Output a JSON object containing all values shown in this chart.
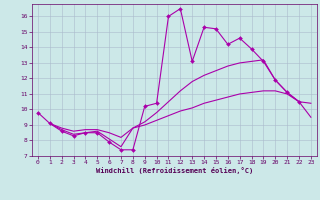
{
  "xlabel": "Windchill (Refroidissement éolien,°C)",
  "xlim": [
    -0.5,
    23.5
  ],
  "ylim": [
    7,
    16.8
  ],
  "yticks": [
    7,
    8,
    9,
    10,
    11,
    12,
    13,
    14,
    15,
    16
  ],
  "xticks": [
    0,
    1,
    2,
    3,
    4,
    5,
    6,
    7,
    8,
    9,
    10,
    11,
    12,
    13,
    14,
    15,
    16,
    17,
    18,
    19,
    20,
    21,
    22,
    23
  ],
  "bg_color": "#cce8e8",
  "line_color": "#aa00aa",
  "grid_color": "#aabbcc",
  "lines": [
    {
      "x": [
        0,
        1,
        2,
        3,
        4,
        5,
        6,
        7,
        8,
        9,
        10,
        11,
        12,
        13,
        14,
        15,
        16,
        17,
        18,
        19,
        20,
        21,
        22
      ],
      "y": [
        9.8,
        9.1,
        8.6,
        8.3,
        8.5,
        8.5,
        7.9,
        7.4,
        7.4,
        10.2,
        10.4,
        16.0,
        16.5,
        13.1,
        15.3,
        15.2,
        14.2,
        14.6,
        13.9,
        13.1,
        11.9,
        11.1,
        10.5
      ],
      "marker": true
    },
    {
      "x": [
        1,
        2,
        3,
        4,
        5,
        6,
        7,
        8,
        9,
        10,
        11,
        12,
        13,
        14,
        15,
        16,
        17,
        18,
        19,
        20,
        21,
        22,
        23
      ],
      "y": [
        9.1,
        8.7,
        8.4,
        8.5,
        8.6,
        8.1,
        7.6,
        8.8,
        9.2,
        9.8,
        10.5,
        11.2,
        11.8,
        12.2,
        12.5,
        12.8,
        13.0,
        13.1,
        13.2,
        11.9,
        11.1,
        10.5,
        10.4
      ],
      "marker": false
    },
    {
      "x": [
        1,
        2,
        3,
        4,
        5,
        6,
        7,
        8,
        9,
        10,
        11,
        12,
        13,
        14,
        15,
        16,
        17,
        18,
        19,
        20,
        21,
        22,
        23
      ],
      "y": [
        9.1,
        8.8,
        8.6,
        8.7,
        8.7,
        8.5,
        8.2,
        8.8,
        9.0,
        9.3,
        9.6,
        9.9,
        10.1,
        10.4,
        10.6,
        10.8,
        11.0,
        11.1,
        11.2,
        11.2,
        11.0,
        10.5,
        9.5
      ],
      "marker": false
    }
  ]
}
